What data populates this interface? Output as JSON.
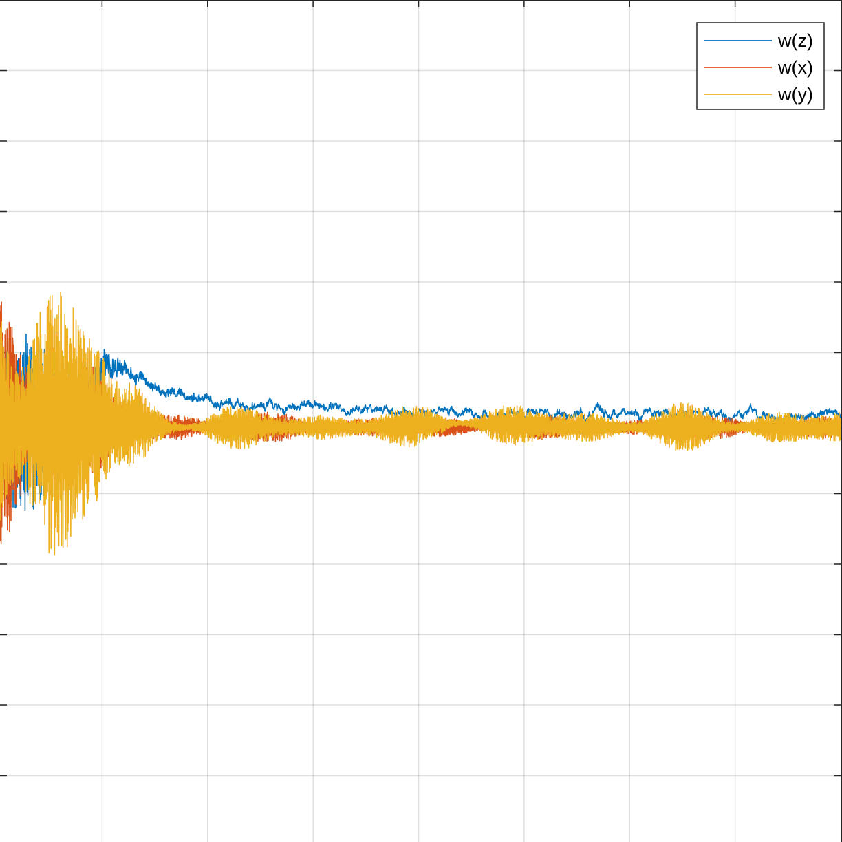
{
  "chart_data": {
    "type": "line",
    "title": "",
    "xlabel": "",
    "ylabel": "",
    "xlim": [
      0,
      1
    ],
    "ylim": [
      -1,
      1
    ],
    "x_ticks": [
      0.125,
      0.25,
      0.375,
      0.5,
      0.625,
      0.75,
      0.875
    ],
    "y_ticks": [
      -0.8333,
      -0.6667,
      -0.5,
      -0.3333,
      -0.1667,
      0,
      0.1667,
      0.3333,
      0.5,
      0.6667,
      0.8333
    ],
    "grid": true,
    "legend_position": "top-right",
    "colors": {
      "w_z": "#0072BD",
      "w_x": "#D95319",
      "w_y": "#EDB120",
      "grid": "#262626",
      "axis": "#262626"
    },
    "series": [
      {
        "name": "w(z)",
        "color": "#0072BD",
        "envelope": [
          {
            "x": 0.0,
            "center": 0.0,
            "amp": 0.35
          },
          {
            "x": 0.03,
            "center": 0.0,
            "amp": 0.3
          },
          {
            "x": 0.09,
            "center": 0.0,
            "amp": 0.22
          },
          {
            "x": 0.13,
            "center": 0.15,
            "amp": 0.06
          },
          {
            "x": 0.15,
            "center": 0.12,
            "amp": 0.03
          },
          {
            "x": 0.2,
            "center": 0.07,
            "amp": 0.015
          },
          {
            "x": 0.3,
            "center": 0.045,
            "amp": 0.012
          },
          {
            "x": 0.45,
            "center": 0.03,
            "amp": 0.01
          },
          {
            "x": 0.6,
            "center": 0.025,
            "amp": 0.01
          },
          {
            "x": 0.75,
            "center": 0.02,
            "amp": 0.01
          },
          {
            "x": 0.9,
            "center": 0.02,
            "amp": 0.01
          },
          {
            "x": 1.0,
            "center": 0.02,
            "amp": 0.01
          }
        ]
      },
      {
        "name": "w(x)",
        "color": "#D95319",
        "envelope": [
          {
            "x": 0.0,
            "center": 0.0,
            "amp": 0.35
          },
          {
            "x": 0.03,
            "center": 0.0,
            "amp": 0.3
          },
          {
            "x": 0.09,
            "center": 0.0,
            "amp": 0.24
          },
          {
            "x": 0.14,
            "center": 0.0,
            "amp": 0.08
          },
          {
            "x": 0.2,
            "center": -0.01,
            "amp": 0.05
          },
          {
            "x": 0.3,
            "center": -0.01,
            "amp": 0.04
          },
          {
            "x": 0.45,
            "center": -0.01,
            "amp": 0.03
          },
          {
            "x": 0.6,
            "center": -0.01,
            "amp": 0.03
          },
          {
            "x": 0.8,
            "center": -0.01,
            "amp": 0.03
          },
          {
            "x": 1.0,
            "center": -0.01,
            "amp": 0.03
          }
        ]
      },
      {
        "name": "w(y)",
        "color": "#EDB120",
        "envelope": [
          {
            "x": 0.0,
            "center": 0.0,
            "amp": 0.7
          },
          {
            "x": 0.03,
            "center": 0.0,
            "amp": 0.65
          },
          {
            "x": 0.06,
            "center": 0.0,
            "amp": 0.55
          },
          {
            "x": 0.09,
            "center": 0.0,
            "amp": 0.45
          },
          {
            "x": 0.12,
            "center": 0.0,
            "amp": 0.35
          },
          {
            "x": 0.14,
            "center": 0.0,
            "amp": 0.15
          },
          {
            "x": 0.2,
            "center": -0.01,
            "amp": 0.06
          },
          {
            "x": 0.3,
            "center": -0.01,
            "amp": 0.055
          },
          {
            "x": 0.45,
            "center": -0.01,
            "amp": 0.05
          },
          {
            "x": 0.55,
            "center": 0.0,
            "amp": 0.06
          },
          {
            "x": 0.7,
            "center": -0.01,
            "amp": 0.055
          },
          {
            "x": 0.85,
            "center": -0.01,
            "amp": 0.06
          },
          {
            "x": 1.0,
            "center": -0.01,
            "amp": 0.05
          }
        ]
      }
    ]
  }
}
